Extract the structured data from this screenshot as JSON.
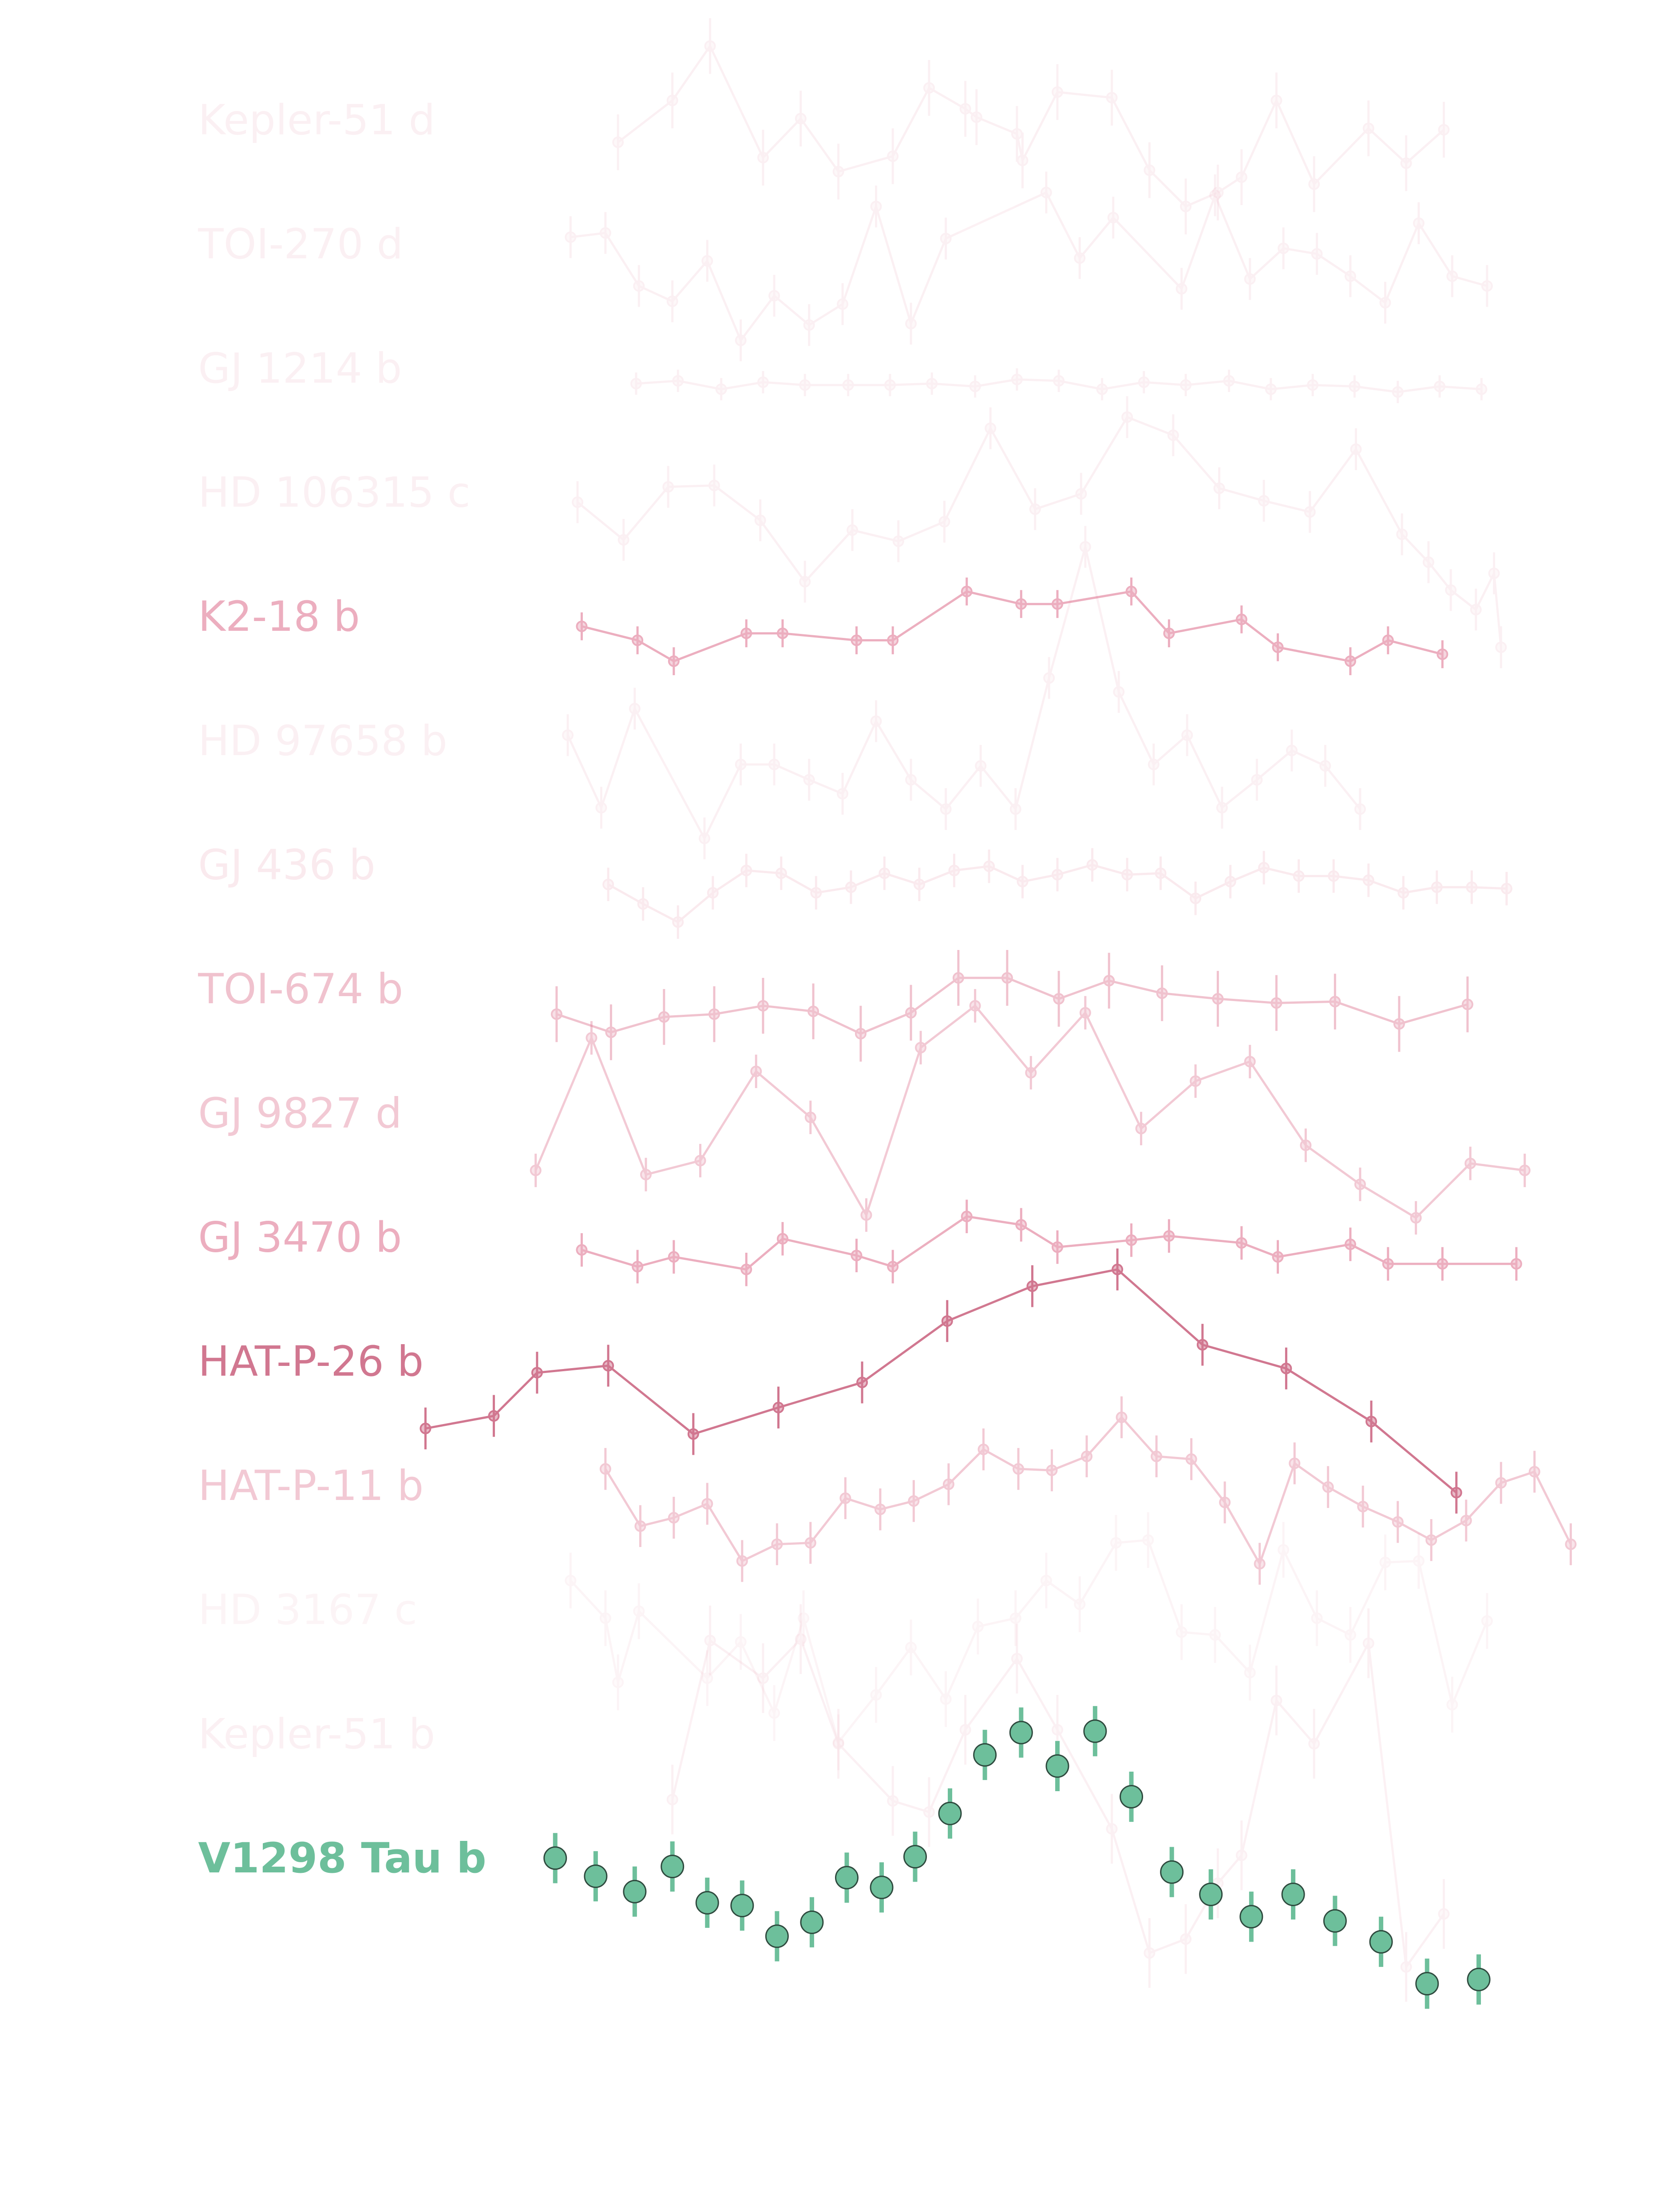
{
  "chart_data": {
    "type": "line",
    "series": [
      {
        "name": "Kepler-51 d",
        "color": "#e07a95",
        "alpha": 0.1,
        "error": 20,
        "x": [
          443,
          482,
          509,
          547,
          574,
          601,
          640,
          666,
          692,
          700,
          729,
          733,
          758,
          797,
          824,
          850,
          873,
          890,
          915,
          942,
          981,
          1008,
          1035
        ],
        "values": [
          -14,
          16,
          55,
          -25,
          3,
          -35,
          -24,
          25,
          10,
          4,
          -8,
          -27,
          22,
          18,
          -34,
          -60,
          -50,
          -39,
          16,
          -44,
          -4,
          -29,
          -5
        ]
      },
      {
        "name": "TOI-270 d",
        "color": "#e07a95",
        "alpha": 0.1,
        "error": 15,
        "x": [
          409,
          434,
          458,
          482,
          507,
          531,
          555,
          580,
          604,
          628,
          653,
          678,
          750,
          774,
          798,
          847,
          871,
          896,
          920,
          944,
          968,
          993,
          1017,
          1041,
          1066
        ],
        "values": [
          7,
          10,
          -28,
          -39,
          -10,
          -67,
          -35,
          -56,
          -41,
          29,
          -55,
          6,
          39,
          -8,
          21,
          -30,
          37,
          -23,
          -1,
          -5,
          -21,
          -40,
          17,
          -21,
          -28
        ]
      },
      {
        "name": "GJ 1214 b",
        "color": "#e07a95",
        "alpha": 0.1,
        "error": 8,
        "x": [
          456,
          486,
          517,
          547,
          577,
          608,
          638,
          668,
          699,
          729,
          759,
          790,
          820,
          850,
          881,
          911,
          941,
          971,
          1002,
          1032,
          1062
        ],
        "values": [
          -9,
          -7,
          -13,
          -8,
          -10,
          -10,
          -10,
          -9,
          -11,
          -6,
          -7,
          -13,
          -8,
          -10,
          -7,
          -13,
          -10,
          -11,
          -15,
          -11,
          -13
        ]
      },
      {
        "name": "HD 106315 c",
        "color": "#e07a95",
        "alpha": 0.1,
        "error": 15,
        "x": [
          414,
          447,
          479,
          512,
          545,
          577,
          611,
          644,
          677,
          710,
          742,
          775,
          808,
          841,
          874,
          906,
          939,
          972,
          1005,
          1024,
          1040,
          1058,
          1071,
          1076
        ],
        "values": [
          -5,
          -32,
          6,
          7,
          -18,
          -62,
          -25,
          -33,
          -19,
          48,
          -10,
          1,
          56,
          43,
          5,
          -4,
          -12,
          33,
          -28,
          -48,
          -68,
          -82,
          -56,
          -109
        ]
      },
      {
        "name": "K2-18 b",
        "color": "#e07a95",
        "alpha": 0.6,
        "error": 10,
        "x": [
          417,
          457,
          483,
          535,
          561,
          614,
          640,
          693,
          732,
          758,
          811,
          838,
          890,
          916,
          968,
          995,
          1034
        ],
        "values": [
          -5,
          -15,
          -30,
          -10,
          -10,
          -15,
          -15,
          20,
          11,
          11,
          20,
          -10,
          0,
          -20,
          -30,
          -15,
          -25
        ]
      },
      {
        "name": "HD 97658 b",
        "color": "#e07a95",
        "alpha": 0.1,
        "error": 15,
        "x": [
          407,
          431,
          455,
          505,
          531,
          555,
          580,
          604,
          628,
          653,
          678,
          703,
          728,
          752,
          778,
          802,
          827,
          851,
          876,
          901,
          926,
          950,
          975
        ],
        "values": [
          6,
          -46,
          25,
          -68,
          -15,
          -15,
          -26,
          -36,
          16,
          -26,
          -47,
          -16,
          -47,
          47,
          141,
          37,
          -15,
          6,
          -46,
          -26,
          -5,
          -16,
          -47
        ]
      },
      {
        "name": "GJ 436 b",
        "color": "#e07a95",
        "alpha": 0.15,
        "error": 12,
        "x": [
          436,
          461,
          486,
          511,
          535,
          560,
          585,
          610,
          634,
          659,
          684,
          709,
          733,
          758,
          783,
          808,
          832,
          857,
          882,
          906,
          931,
          956,
          981,
          1006,
          1030,
          1055,
          1080
        ],
        "values": [
          -12,
          -26,
          -39,
          -18,
          -2,
          -4,
          -18,
          -14,
          -4,
          -12,
          -2,
          1,
          -10,
          -5,
          2,
          -5,
          -4,
          -22,
          -10,
          0,
          -6,
          -6,
          -9,
          -18,
          -14,
          -14,
          -15
        ]
      },
      {
        "name": "TOI-674 b",
        "color": "#e07a95",
        "alpha": 0.45,
        "error": 20,
        "x": [
          399,
          438,
          476,
          512,
          547,
          583,
          617,
          653,
          687,
          722,
          759,
          795,
          833,
          873,
          915,
          957,
          1003,
          1052
        ],
        "values": [
          -16,
          -29,
          -18,
          -16,
          -10,
          -14,
          -30,
          -15,
          10,
          10,
          -5,
          8,
          -1,
          -5,
          -8,
          -7,
          -23,
          -9
        ]
      },
      {
        "name": "GJ 9827 d",
        "color": "#e07a95",
        "alpha": 0.4,
        "error": 12,
        "x": [
          384,
          424,
          463,
          502,
          542,
          581,
          621,
          660,
          699,
          739,
          778,
          818,
          857,
          896,
          936,
          975,
          1015,
          1054,
          1093
        ],
        "values": [
          -39,
          56,
          -42,
          -32,
          32,
          -1,
          -71,
          49,
          79,
          31,
          74,
          -9,
          25,
          39,
          -21,
          -49,
          -73,
          -34,
          -39
        ]
      },
      {
        "name": "GJ 3470 b",
        "color": "#e07a95",
        "alpha": 0.6,
        "error": 12,
        "x": [
          417,
          457,
          483,
          535,
          561,
          614,
          640,
          693,
          732,
          758,
          811,
          838,
          890,
          916,
          968,
          995,
          1034,
          1087
        ],
        "values": [
          -7,
          -19,
          -12,
          -21,
          1,
          -11,
          -19,
          17,
          11,
          -5,
          0,
          3,
          -2,
          -12,
          -3,
          -17,
          -17,
          -17
        ]
      },
      {
        "name": "HAT-P-26 b",
        "color": "#c9607d",
        "alpha": 0.85,
        "error": 15,
        "x": [
          305,
          354,
          385,
          436,
          497,
          558,
          618,
          679,
          740,
          801,
          862,
          922,
          983,
          1044
        ],
        "values": [
          -46,
          -37,
          -6,
          -1,
          -50,
          -31,
          -13,
          31,
          56,
          68,
          14,
          -3,
          -41,
          -92
        ]
      },
      {
        "name": "HAT-P-11 b",
        "color": "#e07a95",
        "alpha": 0.4,
        "error": 15,
        "x": [
          434,
          459,
          483,
          507,
          532,
          557,
          581,
          606,
          631,
          655,
          680,
          705,
          730,
          754,
          779,
          804,
          829,
          854,
          878,
          903,
          928,
          952,
          977,
          1002,
          1026,
          1051,
          1076,
          1100,
          1126
        ],
        "values": [
          14,
          -27,
          -21,
          -11,
          -52,
          -40,
          -39,
          -7,
          -15,
          -9,
          3,
          28,
          14,
          13,
          23,
          51,
          23,
          21,
          -10,
          -54,
          18,
          1,
          -13,
          -24,
          -37,
          -23,
          4,
          12,
          -40
        ]
      },
      {
        "name": "HD 3167 c",
        "color": "#e07a95",
        "alpha": 0.08,
        "error": 20,
        "x": [
          409,
          434,
          443,
          458,
          507,
          531,
          555,
          576,
          601,
          628,
          653,
          678,
          701,
          728,
          750,
          774,
          800,
          823,
          847,
          871,
          896,
          920,
          944,
          968,
          993,
          1017,
          1041,
          1066
        ],
        "values": [
          23,
          -4,
          -50,
          1,
          -47,
          -21,
          -72,
          -4,
          -93,
          -59,
          -25,
          -62,
          -10,
          -4,
          23,
          6,
          50,
          52,
          -14,
          -16,
          -43,
          45,
          -4,
          -16,
          36,
          37,
          -66,
          -6
        ]
      },
      {
        "name": "Kepler-51 b",
        "color": "#e07a95",
        "alpha": 0.1,
        "error": 25,
        "x": [
          482,
          509,
          547,
          574,
          601,
          640,
          666,
          692,
          729,
          758,
          797,
          824,
          850,
          873,
          890,
          915,
          942,
          981,
          1008,
          1035
        ],
        "values": [
          -45,
          69,
          42,
          70,
          -5,
          -46,
          -54,
          5,
          56,
          5,
          -66,
          -155,
          -145,
          -105,
          -85,
          26,
          -5,
          67,
          -165,
          -127
        ]
      },
      {
        "name": "V1298 Tau b",
        "color": "#6dbf9b",
        "alpha": 1,
        "error": 18,
        "highlight": true,
        "x": [
          398,
          427,
          455,
          482,
          507,
          532,
          557,
          582,
          607,
          632,
          656,
          681,
          706,
          732,
          758,
          785,
          811,
          840,
          868,
          897,
          927,
          957,
          990,
          1023,
          1060
        ],
        "values": [
          2,
          -11,
          -22,
          -4,
          -30,
          -32,
          -54,
          -44,
          -12,
          -19,
          3,
          34,
          76,
          92,
          68,
          93,
          46,
          -8,
          -24,
          -40,
          -24,
          -43,
          -58,
          -88,
          -85
        ]
      }
    ]
  }
}
